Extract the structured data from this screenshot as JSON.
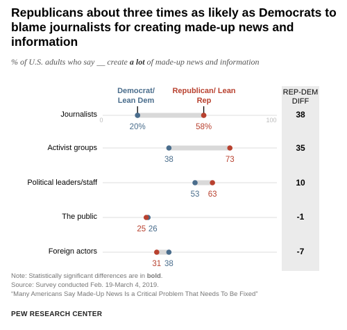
{
  "title": "Republicans about three times as likely as Democrats to blame journalists for creating made-up news and information",
  "subtitle": {
    "part1": "% of U.S. adults who say __ create ",
    "emphasis": "a lot",
    "part2": " of made-up news and information"
  },
  "legend": {
    "democrat": "Democrat/ Lean Dem",
    "republican": "Republican/ Lean Rep"
  },
  "diff_header": "REP-DEM DIFF",
  "colors": {
    "democrat": "#4a6d8c",
    "republican": "#b8412f",
    "bar": "#d9d9d9",
    "diff_bg": "#ebebeb"
  },
  "chart_data": {
    "type": "dot-plot",
    "xlim": [
      0,
      100
    ],
    "axis_labels": [
      "0",
      "100"
    ],
    "categories": [
      "Journalists",
      "Activist groups",
      "Political leaders/staff",
      "The public",
      "Foreign actors"
    ],
    "series": [
      {
        "name": "Democrat/Lean Dem",
        "values": [
          20,
          38,
          53,
          26,
          38
        ]
      },
      {
        "name": "Republican/Lean Rep",
        "values": [
          58,
          73,
          63,
          25,
          31
        ]
      }
    ],
    "value_labels": {
      "democrat": [
        "20%",
        "38",
        "53",
        "26",
        "38"
      ],
      "republican": [
        "58%",
        "73",
        "63",
        "25",
        "31"
      ]
    },
    "diff": [
      "38",
      "35",
      "10",
      "-1",
      "-7"
    ]
  },
  "footer": {
    "note_prefix": "Note: Statistically significant differences are in ",
    "note_bold": "bold",
    "note_suffix": ".",
    "source": "Source: Survey conducted Feb. 19-March 4, 2019.",
    "report": "“Many Americans Say Made-Up News Is a Critical Problem That Needs To Be Fixed”",
    "brand": "PEW RESEARCH CENTER"
  }
}
